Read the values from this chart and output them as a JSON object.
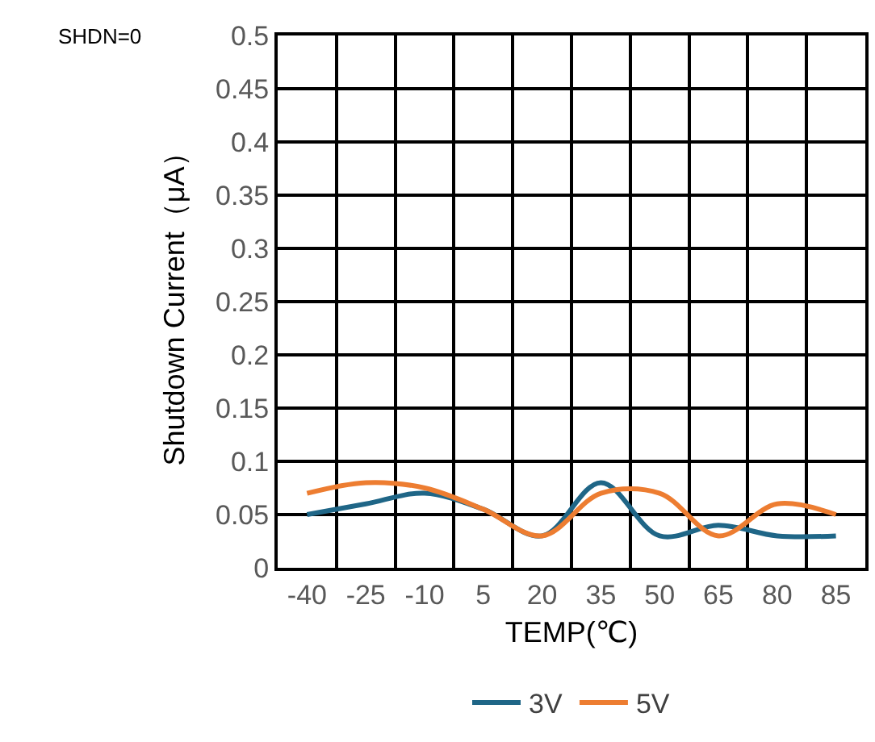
{
  "chart_data": {
    "type": "line",
    "categories": [
      "-40",
      "-25",
      "-10",
      "5",
      "20",
      "35",
      "50",
      "65",
      "80",
      "85"
    ],
    "series": [
      {
        "name": "3V",
        "color": "#1f6687",
        "values": [
          0.05,
          0.06,
          0.07,
          0.055,
          0.03,
          0.08,
          0.03,
          0.04,
          0.03,
          0.03
        ]
      },
      {
        "name": "5V",
        "color": "#ed7d31",
        "values": [
          0.07,
          0.08,
          0.075,
          0.055,
          0.03,
          0.07,
          0.07,
          0.03,
          0.06,
          0.05
        ]
      }
    ],
    "xlabel": "TEMP(℃)",
    "ylabel": "Shutdown Current（μA）",
    "annotations": [
      "SHDN=0"
    ],
    "ylim": [
      0,
      0.5
    ],
    "yticks": [
      0,
      0.05,
      0.1,
      0.15,
      0.2,
      0.25,
      0.3,
      0.35,
      0.4,
      0.45,
      0.5
    ],
    "grid": true,
    "legend": "bottom",
    "marker": "none",
    "line_style": "solid"
  }
}
